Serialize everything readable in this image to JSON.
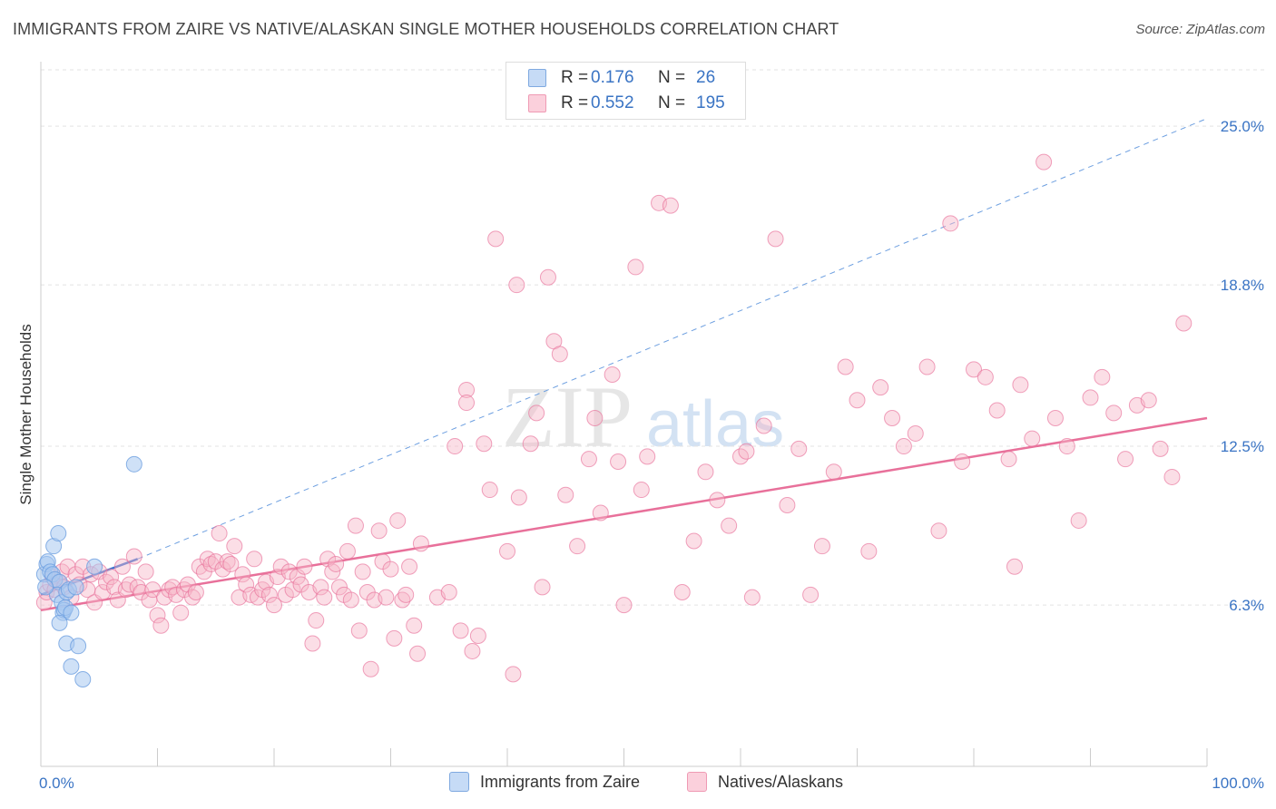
{
  "title": "IMMIGRANTS FROM ZAIRE VS NATIVE/ALASKAN SINGLE MOTHER HOUSEHOLDS CORRELATION CHART",
  "source": "Source: ZipAtlas.com",
  "watermark": {
    "zip": "ZIP",
    "atlas": "atlas"
  },
  "legend": {
    "rows": [
      {
        "r_label": "R =",
        "r_value": "0.176",
        "n_label": "N =",
        "n_value": "26",
        "color": "#a8c8f0"
      },
      {
        "r_label": "R =",
        "r_value": "0.552",
        "n_label": "N =",
        "n_value": "195",
        "color": "#f7b6c8"
      }
    ]
  },
  "bottom_legend": [
    {
      "label": "Immigrants from Zaire",
      "color": "#a8c8f0"
    },
    {
      "label": "Natives/Alaskans",
      "color": "#f7b6c8"
    }
  ],
  "chart_data": {
    "type": "scatter",
    "xlabel": "",
    "ylabel": "Single Mother Households",
    "xlim": [
      0,
      100
    ],
    "ylim": [
      0,
      27.2
    ],
    "x_tick_labels": [
      "0.0%",
      "100.0%"
    ],
    "y_ticks": [
      6.3,
      12.5,
      18.8,
      25.0
    ],
    "y_tick_labels": [
      "6.3%",
      "12.5%",
      "18.8%",
      "25.0%"
    ],
    "grid": "horizontal dashed",
    "colors": {
      "blue": "#6d9fe0",
      "blue_fill": "#a8c8f0",
      "pink": "#e8709a",
      "pink_fill": "#f7b6c8",
      "tick_text": "#3a74c4"
    },
    "series": [
      {
        "name": "Immigrants from Zaire",
        "color": "#6d9fe0",
        "trend": {
          "x": [
            0,
            8.3
          ],
          "y": [
            6.7,
            8.1
          ],
          "style": "solid"
        },
        "trend_extension": {
          "x": [
            8.3,
            100
          ],
          "y": [
            8.1,
            25.3
          ],
          "style": "dashed"
        },
        "points": [
          [
            0.3,
            7.5
          ],
          [
            0.5,
            7.9
          ],
          [
            0.6,
            8.0
          ],
          [
            0.8,
            7.6
          ],
          [
            1.0,
            7.5
          ],
          [
            1.2,
            7.3
          ],
          [
            1.1,
            8.6
          ],
          [
            1.5,
            9.1
          ],
          [
            1.6,
            7.2
          ],
          [
            1.4,
            6.7
          ],
          [
            1.8,
            6.4
          ],
          [
            1.9,
            6.0
          ],
          [
            2.0,
            6.1
          ],
          [
            2.1,
            6.2
          ],
          [
            2.2,
            6.8
          ],
          [
            2.4,
            6.9
          ],
          [
            2.6,
            6.0
          ],
          [
            3.0,
            7.0
          ],
          [
            1.6,
            5.6
          ],
          [
            2.2,
            4.8
          ],
          [
            3.2,
            4.7
          ],
          [
            2.6,
            3.9
          ],
          [
            3.6,
            3.4
          ],
          [
            4.6,
            7.8
          ],
          [
            8.0,
            11.8
          ],
          [
            0.4,
            7.0
          ]
        ]
      },
      {
        "name": "Natives/Alaskans",
        "color": "#e8709a",
        "trend": {
          "x": [
            0,
            100
          ],
          "y": [
            6.1,
            13.6
          ],
          "style": "solid"
        },
        "points": [
          [
            0.3,
            6.4
          ],
          [
            0.5,
            6.8
          ],
          [
            0.8,
            7.1
          ],
          [
            1.0,
            7.4
          ],
          [
            1.2,
            6.9
          ],
          [
            1.5,
            7.2
          ],
          [
            1.8,
            7.6
          ],
          [
            2.0,
            7.0
          ],
          [
            2.3,
            7.8
          ],
          [
            2.6,
            6.6
          ],
          [
            3.0,
            7.5
          ],
          [
            3.3,
            7.1
          ],
          [
            3.6,
            7.8
          ],
          [
            4.0,
            6.9
          ],
          [
            4.3,
            7.5
          ],
          [
            4.6,
            6.4
          ],
          [
            5.0,
            7.6
          ],
          [
            5.3,
            6.8
          ],
          [
            5.6,
            7.2
          ],
          [
            6.0,
            7.4
          ],
          [
            6.3,
            7.0
          ],
          [
            6.6,
            6.5
          ],
          [
            7.0,
            7.8
          ],
          [
            7.3,
            6.9
          ],
          [
            7.6,
            7.1
          ],
          [
            8.0,
            8.2
          ],
          [
            8.3,
            7.0
          ],
          [
            8.6,
            6.8
          ],
          [
            9.0,
            7.6
          ],
          [
            9.3,
            6.5
          ],
          [
            9.6,
            6.9
          ],
          [
            10.0,
            5.9
          ],
          [
            10.3,
            5.5
          ],
          [
            10.6,
            6.6
          ],
          [
            11.0,
            6.9
          ],
          [
            11.3,
            7.0
          ],
          [
            11.6,
            6.7
          ],
          [
            12.0,
            6.0
          ],
          [
            12.3,
            6.9
          ],
          [
            12.6,
            7.1
          ],
          [
            13.0,
            6.6
          ],
          [
            13.3,
            6.8
          ],
          [
            13.6,
            7.8
          ],
          [
            14.0,
            7.6
          ],
          [
            14.3,
            8.1
          ],
          [
            14.6,
            7.9
          ],
          [
            15.0,
            8.0
          ],
          [
            15.3,
            9.1
          ],
          [
            15.6,
            7.7
          ],
          [
            16.0,
            8.0
          ],
          [
            16.3,
            7.9
          ],
          [
            16.6,
            8.6
          ],
          [
            17.0,
            6.6
          ],
          [
            17.3,
            7.5
          ],
          [
            17.6,
            7.1
          ],
          [
            18.0,
            6.7
          ],
          [
            18.3,
            8.1
          ],
          [
            18.6,
            6.6
          ],
          [
            19.0,
            6.9
          ],
          [
            19.3,
            7.2
          ],
          [
            19.6,
            6.7
          ],
          [
            20.0,
            6.3
          ],
          [
            20.3,
            7.4
          ],
          [
            20.6,
            7.8
          ],
          [
            21.0,
            6.7
          ],
          [
            21.3,
            7.6
          ],
          [
            21.6,
            6.9
          ],
          [
            22.0,
            7.4
          ],
          [
            22.3,
            7.1
          ],
          [
            22.6,
            7.8
          ],
          [
            23.0,
            6.8
          ],
          [
            23.3,
            4.8
          ],
          [
            23.6,
            5.7
          ],
          [
            24.0,
            7.0
          ],
          [
            24.3,
            6.6
          ],
          [
            24.6,
            8.1
          ],
          [
            25.0,
            7.6
          ],
          [
            25.3,
            7.9
          ],
          [
            25.6,
            7.0
          ],
          [
            26.0,
            6.7
          ],
          [
            26.3,
            8.4
          ],
          [
            26.6,
            6.5
          ],
          [
            27.0,
            9.4
          ],
          [
            27.3,
            5.3
          ],
          [
            27.6,
            7.6
          ],
          [
            28.0,
            6.8
          ],
          [
            28.3,
            3.8
          ],
          [
            28.6,
            6.5
          ],
          [
            29.0,
            9.2
          ],
          [
            29.3,
            8.0
          ],
          [
            29.6,
            6.6
          ],
          [
            30.0,
            7.7
          ],
          [
            30.3,
            5.0
          ],
          [
            30.6,
            9.6
          ],
          [
            31.0,
            6.5
          ],
          [
            31.3,
            6.7
          ],
          [
            31.6,
            7.8
          ],
          [
            32.0,
            5.5
          ],
          [
            32.3,
            4.4
          ],
          [
            32.6,
            8.7
          ],
          [
            34.0,
            6.6
          ],
          [
            35.0,
            6.8
          ],
          [
            35.5,
            12.5
          ],
          [
            36.0,
            5.3
          ],
          [
            36.5,
            14.7
          ],
          [
            37.0,
            4.5
          ],
          [
            37.5,
            5.1
          ],
          [
            38.0,
            12.6
          ],
          [
            38.5,
            10.8
          ],
          [
            39.0,
            20.6
          ],
          [
            40.0,
            8.4
          ],
          [
            40.5,
            3.6
          ],
          [
            40.8,
            18.8
          ],
          [
            41.0,
            10.5
          ],
          [
            42.0,
            12.6
          ],
          [
            42.5,
            13.8
          ],
          [
            43.0,
            7.0
          ],
          [
            43.5,
            19.1
          ],
          [
            44.0,
            16.6
          ],
          [
            44.5,
            16.1
          ],
          [
            45.0,
            10.6
          ],
          [
            46.0,
            8.6
          ],
          [
            47.0,
            12.0
          ],
          [
            47.5,
            13.6
          ],
          [
            48.0,
            9.9
          ],
          [
            49.0,
            15.3
          ],
          [
            49.5,
            11.9
          ],
          [
            50.0,
            6.3
          ],
          [
            51.0,
            19.5
          ],
          [
            51.5,
            10.8
          ],
          [
            52.0,
            12.1
          ],
          [
            53.0,
            22.0
          ],
          [
            54.0,
            21.9
          ],
          [
            55.0,
            6.8
          ],
          [
            56.0,
            8.8
          ],
          [
            57.0,
            11.5
          ],
          [
            58.0,
            10.4
          ],
          [
            59.0,
            9.4
          ],
          [
            60.0,
            12.1
          ],
          [
            61.0,
            6.6
          ],
          [
            62.0,
            13.3
          ],
          [
            63.0,
            20.6
          ],
          [
            64.0,
            10.2
          ],
          [
            65.0,
            12.4
          ],
          [
            66.0,
            6.7
          ],
          [
            67.0,
            8.6
          ],
          [
            68.0,
            11.5
          ],
          [
            69.0,
            15.6
          ],
          [
            70.0,
            14.3
          ],
          [
            71.0,
            8.4
          ],
          [
            72.0,
            14.8
          ],
          [
            73.0,
            13.6
          ],
          [
            74.0,
            12.5
          ],
          [
            75.0,
            13.0
          ],
          [
            76.0,
            15.6
          ],
          [
            77.0,
            9.2
          ],
          [
            78.0,
            21.2
          ],
          [
            79.0,
            11.9
          ],
          [
            80.0,
            15.5
          ],
          [
            81.0,
            15.2
          ],
          [
            82.0,
            13.9
          ],
          [
            83.0,
            12.0
          ],
          [
            84.0,
            14.9
          ],
          [
            85.0,
            12.8
          ],
          [
            86.0,
            23.6
          ],
          [
            87.0,
            13.6
          ],
          [
            88.0,
            12.5
          ],
          [
            89.0,
            9.6
          ],
          [
            90.0,
            14.4
          ],
          [
            91.0,
            15.2
          ],
          [
            92.0,
            13.8
          ],
          [
            93.0,
            12.0
          ],
          [
            94.0,
            14.1
          ],
          [
            95.0,
            14.3
          ],
          [
            96.0,
            12.4
          ],
          [
            97.0,
            11.3
          ],
          [
            98.0,
            17.3
          ],
          [
            36.5,
            14.2
          ],
          [
            60.5,
            12.3
          ],
          [
            83.5,
            7.8
          ]
        ]
      }
    ]
  }
}
